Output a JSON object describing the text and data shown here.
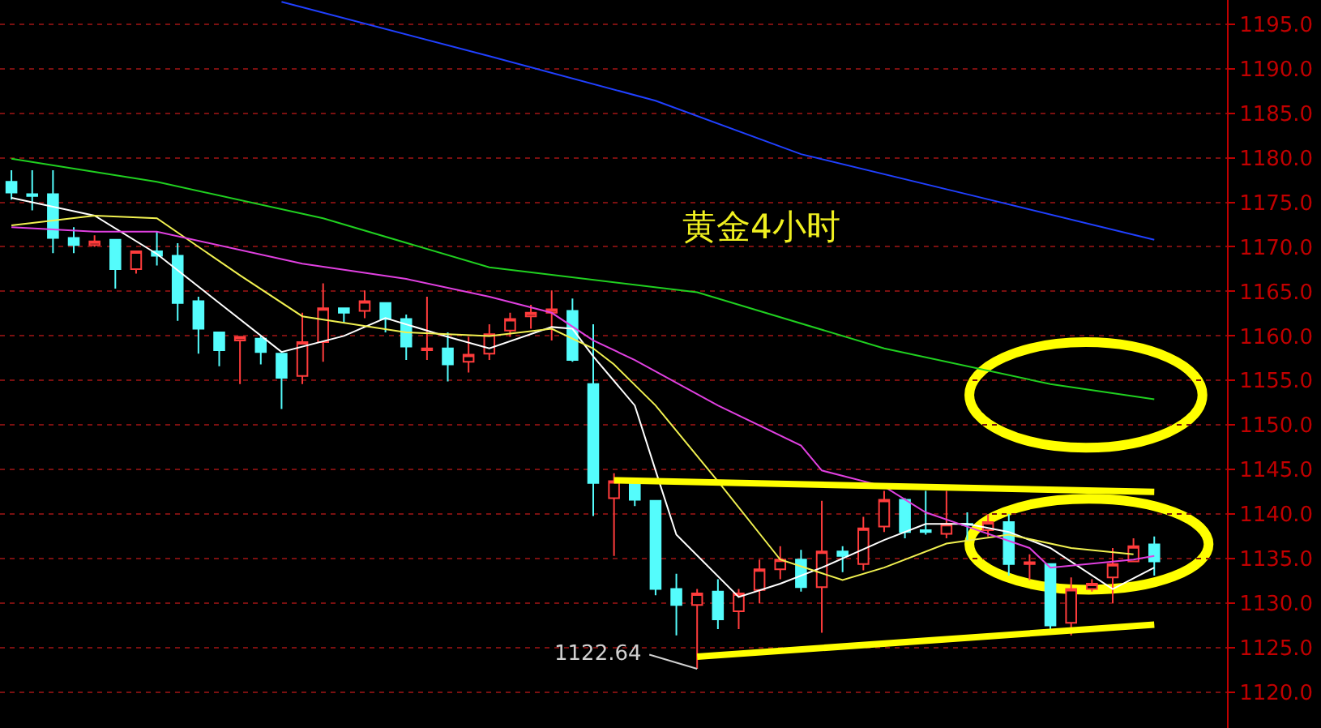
{
  "chart_data": {
    "type": "candlestick",
    "categories": [
      null,
      null,
      null,
      null,
      null,
      null,
      null,
      null,
      null,
      null,
      null,
      null,
      null,
      null,
      null,
      null,
      null,
      null,
      null,
      null,
      null,
      null,
      null,
      null,
      null,
      null,
      null,
      null,
      null,
      null,
      null,
      null,
      null,
      null,
      null,
      null,
      null,
      null,
      null,
      null,
      null,
      null,
      null,
      null,
      null,
      null,
      null,
      null,
      null,
      null,
      null,
      null,
      null,
      null,
      null,
      null
    ],
    "ohlc": [
      [
        1177.3,
        1178.6,
        1175.3,
        1176.1
      ],
      [
        1175.9,
        1178.6,
        1174.1,
        1175.7
      ],
      [
        1175.9,
        1178.6,
        1169.3,
        1171.0
      ],
      [
        1171.0,
        1172.2,
        1169.3,
        1170.2
      ],
      [
        1170.2,
        1171.3,
        1170.0,
        1170.6
      ],
      [
        1170.8,
        1170.8,
        1165.3,
        1167.5
      ],
      [
        1167.5,
        1169.5,
        1167.0,
        1169.5
      ],
      [
        1169.5,
        1171.7,
        1167.9,
        1169.0
      ],
      [
        1169.0,
        1170.4,
        1161.7,
        1163.7
      ],
      [
        1163.9,
        1164.4,
        1158.0,
        1160.8
      ],
      [
        1160.4,
        1160.4,
        1156.6,
        1158.4
      ],
      [
        1159.5,
        1160.0,
        1154.6,
        1159.9
      ],
      [
        1159.7,
        1160.0,
        1156.8,
        1158.2
      ],
      [
        1158.0,
        1158.0,
        1151.8,
        1155.3
      ],
      [
        1155.5,
        1162.6,
        1154.6,
        1159.3
      ],
      [
        1159.3,
        1165.9,
        1157.1,
        1163.1
      ],
      [
        1163.1,
        1163.1,
        1161.5,
        1162.6
      ],
      [
        1162.8,
        1165.1,
        1162.0,
        1163.9
      ],
      [
        1163.7,
        1163.7,
        1160.4,
        1161.9
      ],
      [
        1161.9,
        1162.4,
        1157.3,
        1158.8
      ],
      [
        1158.4,
        1164.4,
        1157.3,
        1158.6
      ],
      [
        1158.6,
        1160.4,
        1154.9,
        1156.8
      ],
      [
        1157.1,
        1159.9,
        1155.9,
        1157.9
      ],
      [
        1158.0,
        1161.3,
        1157.3,
        1160.2
      ],
      [
        1160.6,
        1162.6,
        1159.9,
        1161.9
      ],
      [
        1162.2,
        1163.5,
        1160.8,
        1162.6
      ],
      [
        1162.6,
        1165.1,
        1159.5,
        1163.0
      ],
      [
        1162.8,
        1164.2,
        1157.1,
        1157.3
      ],
      [
        1154.6,
        1161.3,
        1139.8,
        1143.5
      ],
      [
        1141.8,
        1144.6,
        1135.3,
        1143.7
      ],
      [
        1143.7,
        1143.7,
        1140.9,
        1141.6
      ],
      [
        1141.5,
        1141.5,
        1130.9,
        1131.6
      ],
      [
        1131.6,
        1133.3,
        1126.4,
        1129.8
      ],
      [
        1129.8,
        1131.6,
        1122.64,
        1131.1
      ],
      [
        1131.3,
        1132.7,
        1127.1,
        1128.2
      ],
      [
        1129.1,
        1131.6,
        1127.1,
        1131.1
      ],
      [
        1131.5,
        1134.9,
        1130.0,
        1133.8
      ],
      [
        1133.8,
        1136.4,
        1132.7,
        1134.9
      ],
      [
        1134.9,
        1136.0,
        1131.3,
        1131.8
      ],
      [
        1131.8,
        1141.5,
        1126.7,
        1135.8
      ],
      [
        1135.8,
        1136.4,
        1133.5,
        1135.3
      ],
      [
        1134.4,
        1139.7,
        1133.7,
        1138.4
      ],
      [
        1138.6,
        1142.6,
        1138.0,
        1141.6
      ],
      [
        1141.6,
        1141.8,
        1137.3,
        1138.0
      ],
      [
        1138.2,
        1142.6,
        1137.7,
        1138.0
      ],
      [
        1137.8,
        1142.6,
        1137.3,
        1138.9
      ],
      [
        1138.9,
        1140.2,
        1137.1,
        1138.8
      ],
      [
        1138.2,
        1140.0,
        1137.5,
        1139.1
      ],
      [
        1139.1,
        1140.0,
        1133.1,
        1134.4
      ],
      [
        1134.4,
        1135.5,
        1132.6,
        1134.6
      ],
      [
        1134.4,
        1134.4,
        1126.9,
        1127.5
      ],
      [
        1127.8,
        1132.9,
        1126.4,
        1131.6
      ],
      [
        1131.6,
        1132.7,
        1131.3,
        1132.2
      ],
      [
        1132.9,
        1136.2,
        1130.0,
        1134.4
      ],
      [
        1134.7,
        1137.3,
        1134.6,
        1136.4
      ],
      [
        1136.6,
        1137.5,
        1133.1,
        1134.7
      ]
    ],
    "colors": [
      "#54fcfc",
      "#54fcfc",
      "#54fcfc",
      "#54fcfc",
      "#ff3c3c",
      "#54fcfc",
      "#ff3c3c",
      "#54fcfc",
      "#54fcfc",
      "#54fcfc",
      "#54fcfc",
      "#ff3c3c",
      "#54fcfc",
      "#54fcfc",
      "#ff3c3c",
      "#ff3c3c",
      "#54fcfc",
      "#ff3c3c",
      "#54fcfc",
      "#54fcfc",
      "#ff3c3c",
      "#54fcfc",
      "#ff3c3c",
      "#ff3c3c",
      "#ff3c3c",
      "#ff3c3c",
      "#ff3c3c",
      "#54fcfc",
      "#54fcfc",
      "#ff3c3c",
      "#54fcfc",
      "#54fcfc",
      "#54fcfc",
      "#ff3c3c",
      "#54fcfc",
      "#ff3c3c",
      "#ff3c3c",
      "#ff3c3c",
      "#54fcfc",
      "#ff3c3c",
      "#54fcfc",
      "#ff3c3c",
      "#ff3c3c",
      "#54fcfc",
      "#54fcfc",
      "#ff3c3c",
      "#54fcfc",
      "#ff3c3c",
      "#54fcfc",
      "#ff3c3c",
      "#54fcfc",
      "#ff3c3c",
      "#ff3c3c",
      "#ff3c3c",
      "#ff3c3c",
      "#54fcfc"
    ],
    "series": [
      {
        "type": "line",
        "color": "#ffffff",
        "values": [
          1175.5,
          null,
          null,
          null,
          1173.5,
          null,
          null,
          1169.2,
          null,
          null,
          1163.7,
          null,
          null,
          1158.2,
          null,
          null,
          1160.0,
          null,
          1162.0,
          null,
          null,
          1159.9,
          null,
          1158.6,
          null,
          null,
          1161.0,
          1160.8,
          1157.7,
          null,
          1152.2,
          1144.9,
          1137.7,
          null,
          null,
          1130.7,
          null,
          1132.2,
          null,
          1134.0,
          null,
          null,
          1137.1,
          null,
          1138.9,
          null,
          1138.9,
          null,
          1138.0,
          null,
          1136.2,
          null,
          null,
          1131.6,
          null,
          1134.0
        ]
      },
      {
        "type": "line",
        "color": "#f0f050",
        "values": [
          1172.4,
          null,
          null,
          null,
          1173.5,
          null,
          null,
          1173.2,
          null,
          null,
          null,
          1166.8,
          null,
          null,
          1162.2,
          null,
          null,
          null,
          null,
          1160.4,
          null,
          null,
          null,
          1160.0,
          null,
          null,
          1160.8,
          null,
          1158.6,
          1156.8,
          null,
          1152.2,
          null,
          null,
          1143.7,
          null,
          null,
          1134.9,
          null,
          null,
          1132.6,
          null,
          1134.0,
          null,
          null,
          1136.7,
          null,
          null,
          1137.7,
          null,
          null,
          1136.2,
          null,
          null,
          1135.5,
          null
        ]
      },
      {
        "type": "line",
        "color": "#e040e0",
        "values": [
          1172.2,
          null,
          null,
          null,
          1171.7,
          null,
          null,
          1171.7,
          null,
          null,
          null,
          null,
          null,
          null,
          1168.1,
          null,
          null,
          null,
          null,
          1166.4,
          null,
          null,
          null,
          1164.4,
          null,
          null,
          1162.6,
          null,
          1159.5,
          null,
          1157.3,
          null,
          null,
          null,
          1152.2,
          null,
          null,
          null,
          1147.7,
          1144.9,
          null,
          null,
          1143.1,
          null,
          1140.2,
          null,
          1138.6,
          null,
          null,
          1136.2,
          1134.0,
          null,
          null,
          null,
          1134.9,
          1135.3
        ]
      },
      {
        "type": "line",
        "color": "#20d020",
        "values": [
          1179.9,
          null,
          null,
          null,
          null,
          null,
          null,
          1177.3,
          null,
          null,
          null,
          null,
          null,
          null,
          null,
          1173.2,
          null,
          null,
          null,
          null,
          null,
          null,
          null,
          1167.7,
          null,
          null,
          null,
          null,
          null,
          null,
          null,
          null,
          null,
          1164.9,
          null,
          null,
          null,
          null,
          null,
          null,
          null,
          null,
          1158.6,
          null,
          null,
          null,
          null,
          null,
          null,
          null,
          1154.6,
          null,
          null,
          null,
          null,
          1152.9
        ]
      },
      {
        "type": "line",
        "color": "#ffff00",
        "values": [
          null,
          null,
          null,
          null,
          null,
          null,
          null,
          null,
          null,
          null,
          null,
          null,
          null,
          null,
          null,
          null,
          null,
          null,
          null,
          null,
          null,
          null,
          null,
          null,
          null,
          null,
          null,
          null,
          null,
          1143.8,
          null,
          null,
          null,
          null,
          null,
          null,
          null,
          null,
          null,
          null,
          null,
          null,
          null,
          null,
          null,
          null,
          null,
          null,
          null,
          null,
          null,
          null,
          null,
          null,
          null,
          1142.5
        ]
      },
      {
        "type": "line",
        "color": "#ffff00",
        "values": [
          null,
          null,
          null,
          null,
          null,
          null,
          null,
          null,
          null,
          null,
          null,
          null,
          null,
          null,
          null,
          null,
          null,
          null,
          null,
          null,
          null,
          null,
          null,
          null,
          null,
          null,
          null,
          null,
          null,
          null,
          null,
          null,
          null,
          1124.0,
          null,
          null,
          null,
          null,
          null,
          null,
          null,
          null,
          null,
          null,
          null,
          null,
          null,
          null,
          null,
          null,
          null,
          null,
          null,
          null,
          null,
          1127.6
        ]
      },
      {
        "type": "line",
        "color": "#2040ff",
        "values": [
          null,
          null,
          null,
          null,
          null,
          null,
          null,
          null,
          null,
          null,
          null,
          null,
          null,
          1197.5,
          null,
          null,
          null,
          null,
          null,
          null,
          null,
          null,
          null,
          1191.4,
          null,
          null,
          null,
          null,
          null,
          null,
          null,
          1186.4,
          null,
          null,
          null,
          null,
          null,
          null,
          1180.4,
          null,
          null,
          null,
          null,
          null,
          null,
          null,
          1175.9,
          null,
          null,
          null,
          null,
          null,
          null,
          null,
          null,
          1170.8
        ]
      }
    ],
    "ylim": [
      1116,
      1197.7
    ],
    "yticks": [
      {
        "value": 1120,
        "label": "1120.0"
      },
      {
        "value": 1125,
        "label": "1125.0"
      },
      {
        "value": 1130,
        "label": "1130.0"
      },
      {
        "value": 1135,
        "label": "1135.0"
      },
      {
        "value": 1140,
        "label": "1140.0"
      },
      {
        "value": 1145,
        "label": "1145.0"
      },
      {
        "value": 1150,
        "label": "1150.0"
      },
      {
        "value": 1155,
        "label": "1155.0"
      },
      {
        "value": 1160,
        "label": "1160.0"
      },
      {
        "value": 1165,
        "label": "1165.0"
      },
      {
        "value": 1170,
        "label": "1170.0"
      },
      {
        "value": 1175,
        "label": "1175.0"
      },
      {
        "value": 1180,
        "label": "1180.0"
      },
      {
        "value": 1185,
        "label": "1185.0"
      },
      {
        "value": 1190,
        "label": "1190.0"
      },
      {
        "value": 1195,
        "label": "1195.0"
      }
    ],
    "grid": "y",
    "tick_labels": "y",
    "annotations": [
      "黄金4小时",
      "1122.64"
    ]
  }
}
